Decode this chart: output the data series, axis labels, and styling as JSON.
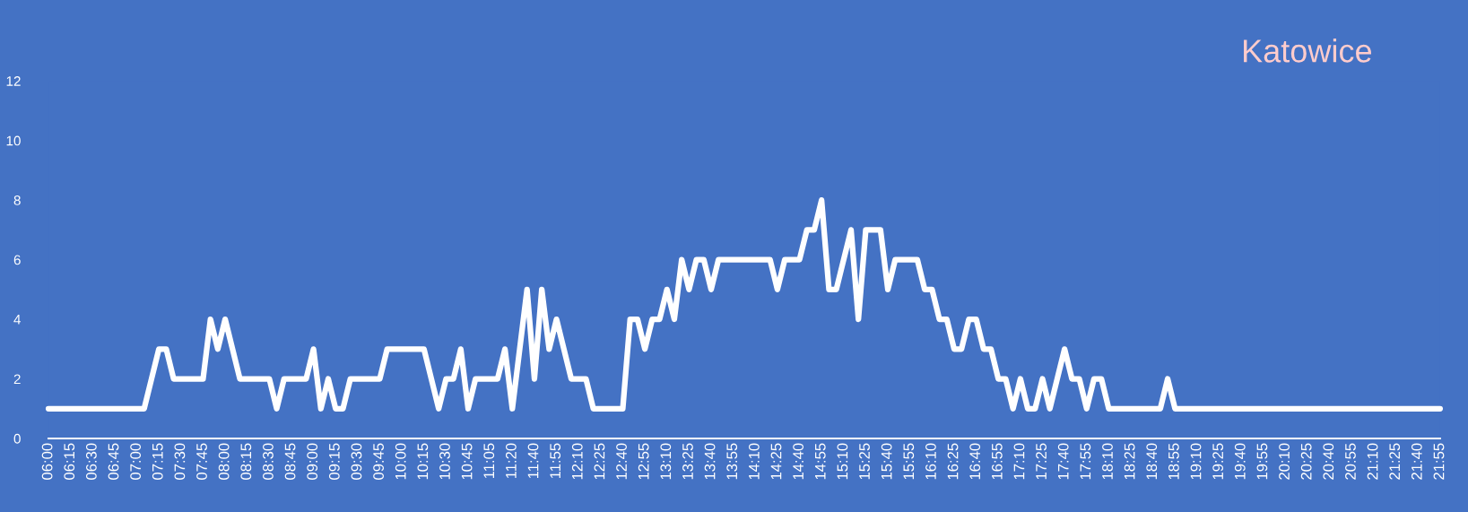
{
  "chart_data": {
    "type": "line",
    "subtitle": "Katowice",
    "categories": [
      "06:00",
      null,
      null,
      "06:15",
      null,
      null,
      "06:30",
      null,
      null,
      "06:45",
      null,
      null,
      "07:00",
      null,
      null,
      "07:15",
      null,
      null,
      "07:30",
      null,
      null,
      "07:45",
      null,
      null,
      "08:00",
      null,
      null,
      "08:15",
      null,
      null,
      "08:30",
      null,
      null,
      "08:45",
      null,
      null,
      "09:00",
      null,
      null,
      "09:15",
      null,
      null,
      "09:30",
      null,
      null,
      "09:45",
      null,
      null,
      "10:00",
      null,
      null,
      "10:15",
      null,
      null,
      "10:30",
      null,
      null,
      "10:45",
      null,
      null,
      "11:05",
      null,
      null,
      "11:20",
      null,
      null,
      "11:40",
      null,
      null,
      "11:55",
      null,
      null,
      "12:10",
      null,
      null,
      "12:25",
      null,
      null,
      "12:40",
      null,
      null,
      "12:55",
      null,
      null,
      "13:10",
      null,
      null,
      "13:25",
      null,
      null,
      "13:40",
      null,
      null,
      "13:55",
      null,
      null,
      "14:10",
      null,
      null,
      "14:25",
      null,
      null,
      "14:40",
      null,
      null,
      "14:55",
      null,
      null,
      "15:10",
      null,
      null,
      "15:25",
      null,
      null,
      "15:40",
      null,
      null,
      "15:55",
      null,
      null,
      "16:10",
      null,
      null,
      "16:25",
      null,
      null,
      "16:40",
      null,
      null,
      "16:55",
      null,
      null,
      "17:10",
      null,
      null,
      "17:25",
      null,
      null,
      "17:40",
      null,
      null,
      "17:55",
      null,
      null,
      "18:10",
      null,
      null,
      "18:25",
      null,
      null,
      "18:40",
      null,
      null,
      "18:55",
      null,
      null,
      "19:10",
      null,
      null,
      "19:25",
      null,
      null,
      "19:40",
      null,
      null,
      "19:55",
      null,
      null,
      "20:10",
      null,
      null,
      "20:25",
      null,
      null,
      "20:40",
      null,
      null,
      "20:55",
      null,
      null,
      "21:10",
      null,
      null,
      "21:25",
      null,
      null,
      "21:40",
      null,
      null,
      "21:55"
    ],
    "series": [
      {
        "color": "#ffffff",
        "values": [
          1,
          1,
          1,
          1,
          1,
          1,
          1,
          1,
          1,
          1,
          1,
          1,
          1,
          1,
          2,
          3,
          3,
          2,
          2,
          2,
          2,
          2,
          4,
          3,
          4,
          3,
          2,
          2,
          2,
          2,
          2,
          1,
          2,
          2,
          2,
          2,
          3,
          1,
          2,
          1,
          1,
          2,
          2,
          2,
          2,
          2,
          3,
          3,
          3,
          3,
          3,
          3,
          2,
          1,
          2,
          2,
          3,
          1,
          2,
          2,
          2,
          2,
          3,
          1,
          3,
          5,
          2,
          5,
          3,
          4,
          3,
          2,
          2,
          2,
          1,
          1,
          1,
          1,
          1,
          4,
          4,
          3,
          4,
          4,
          5,
          4,
          6,
          5,
          6,
          6,
          5,
          6,
          6,
          6,
          6,
          6,
          6,
          6,
          6,
          5,
          6,
          6,
          6,
          7,
          7,
          8,
          5,
          5,
          6,
          7,
          4,
          7,
          7,
          7,
          5,
          6,
          6,
          6,
          6,
          5,
          5,
          4,
          4,
          3,
          3,
          4,
          4,
          3,
          3,
          2,
          2,
          1,
          2,
          1,
          1,
          2,
          1,
          2,
          3,
          2,
          2,
          1,
          2,
          2,
          1,
          1,
          1,
          1,
          1,
          1,
          1,
          1,
          2,
          1,
          1,
          1,
          1,
          1,
          1,
          1,
          1,
          1,
          1,
          1,
          1,
          1,
          1,
          1,
          1,
          1,
          1,
          1,
          1,
          1,
          1,
          1,
          1,
          1,
          1,
          1,
          1,
          1,
          1,
          1,
          1,
          1,
          1,
          1,
          1,
          1
        ]
      }
    ],
    "ylim": [
      0,
      12
    ],
    "yticks": [
      0,
      2,
      4,
      6,
      8,
      10,
      12
    ],
    "grid": false,
    "legend": false,
    "marker": "none",
    "line_style": "solid"
  }
}
